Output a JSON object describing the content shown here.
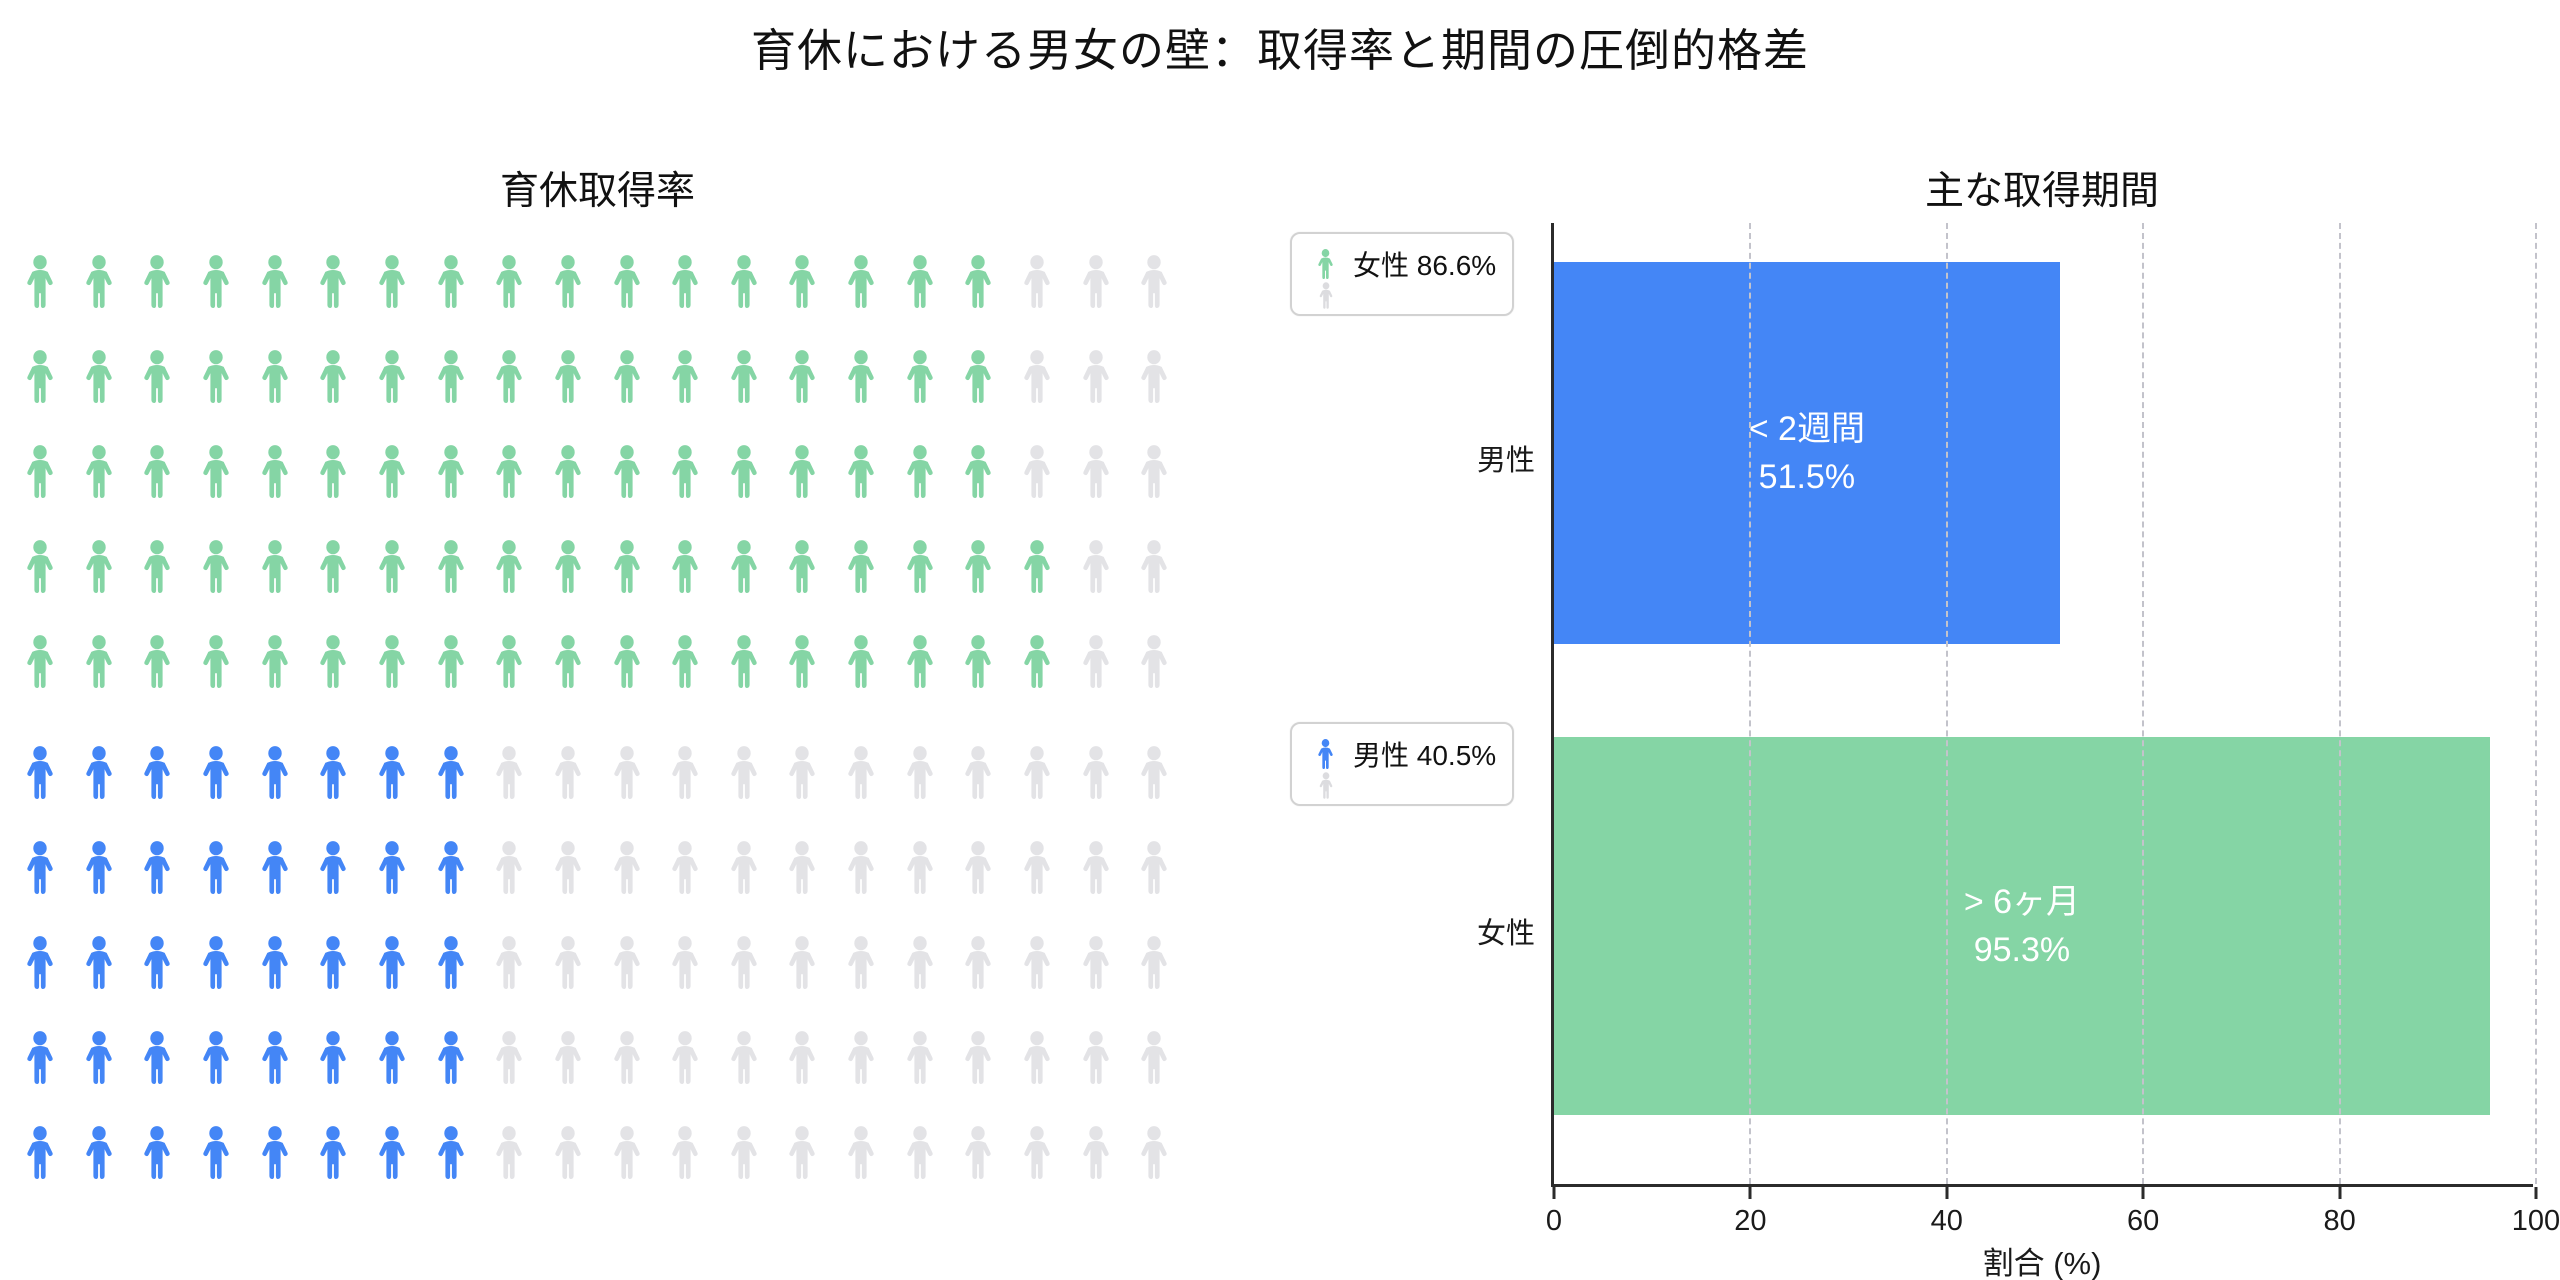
{
  "header": {
    "title": "育休における男女の壁：取得率と期間の圧倒的格差"
  },
  "colors": {
    "female_green": "#85d5a5",
    "male_blue": "#4486f6",
    "empty_gray": "#e3e3e6",
    "legend_gray": "#dcdcdf",
    "grid": "#c3c3cb",
    "axis": "#2b2b2b",
    "bar_label_text": "#ffffff"
  },
  "chart_data": [
    {
      "type": "pictogram",
      "title": "育休取得率",
      "icons_per_row": 20,
      "rows_per_group": 5,
      "total_icons_per_group": 100,
      "series": [
        {
          "name": "女性",
          "value": 86.6,
          "filled_icons": 87,
          "filled_per_row": [
            17,
            17,
            17,
            18,
            18
          ],
          "color": "#85d5a5"
        },
        {
          "name": "男性",
          "value": 40.5,
          "filled_icons": 40,
          "filled_per_row": [
            8,
            8,
            8,
            8,
            8
          ],
          "color": "#4486f6"
        }
      ],
      "empty_color": "#e3e3e6",
      "legend_labels": [
        "女性 86.6%",
        "男性 40.5%"
      ]
    },
    {
      "type": "bar",
      "orientation": "horizontal",
      "title": "主な取得期間",
      "categories": [
        "男性",
        "女性"
      ],
      "values": [
        51.5,
        95.3
      ],
      "bar_labels": [
        [
          "< 2週間",
          "51.5%"
        ],
        [
          "> 6ヶ月",
          "95.3%"
        ]
      ],
      "colors": [
        "#4486f6",
        "#85d5a5"
      ],
      "xlabel": "割合 (%)",
      "xlim": [
        0,
        100
      ],
      "xticks": [
        0,
        20,
        40,
        60,
        80,
        100
      ],
      "grid": "vertical-dashed",
      "legend_position": "outside-left"
    }
  ]
}
